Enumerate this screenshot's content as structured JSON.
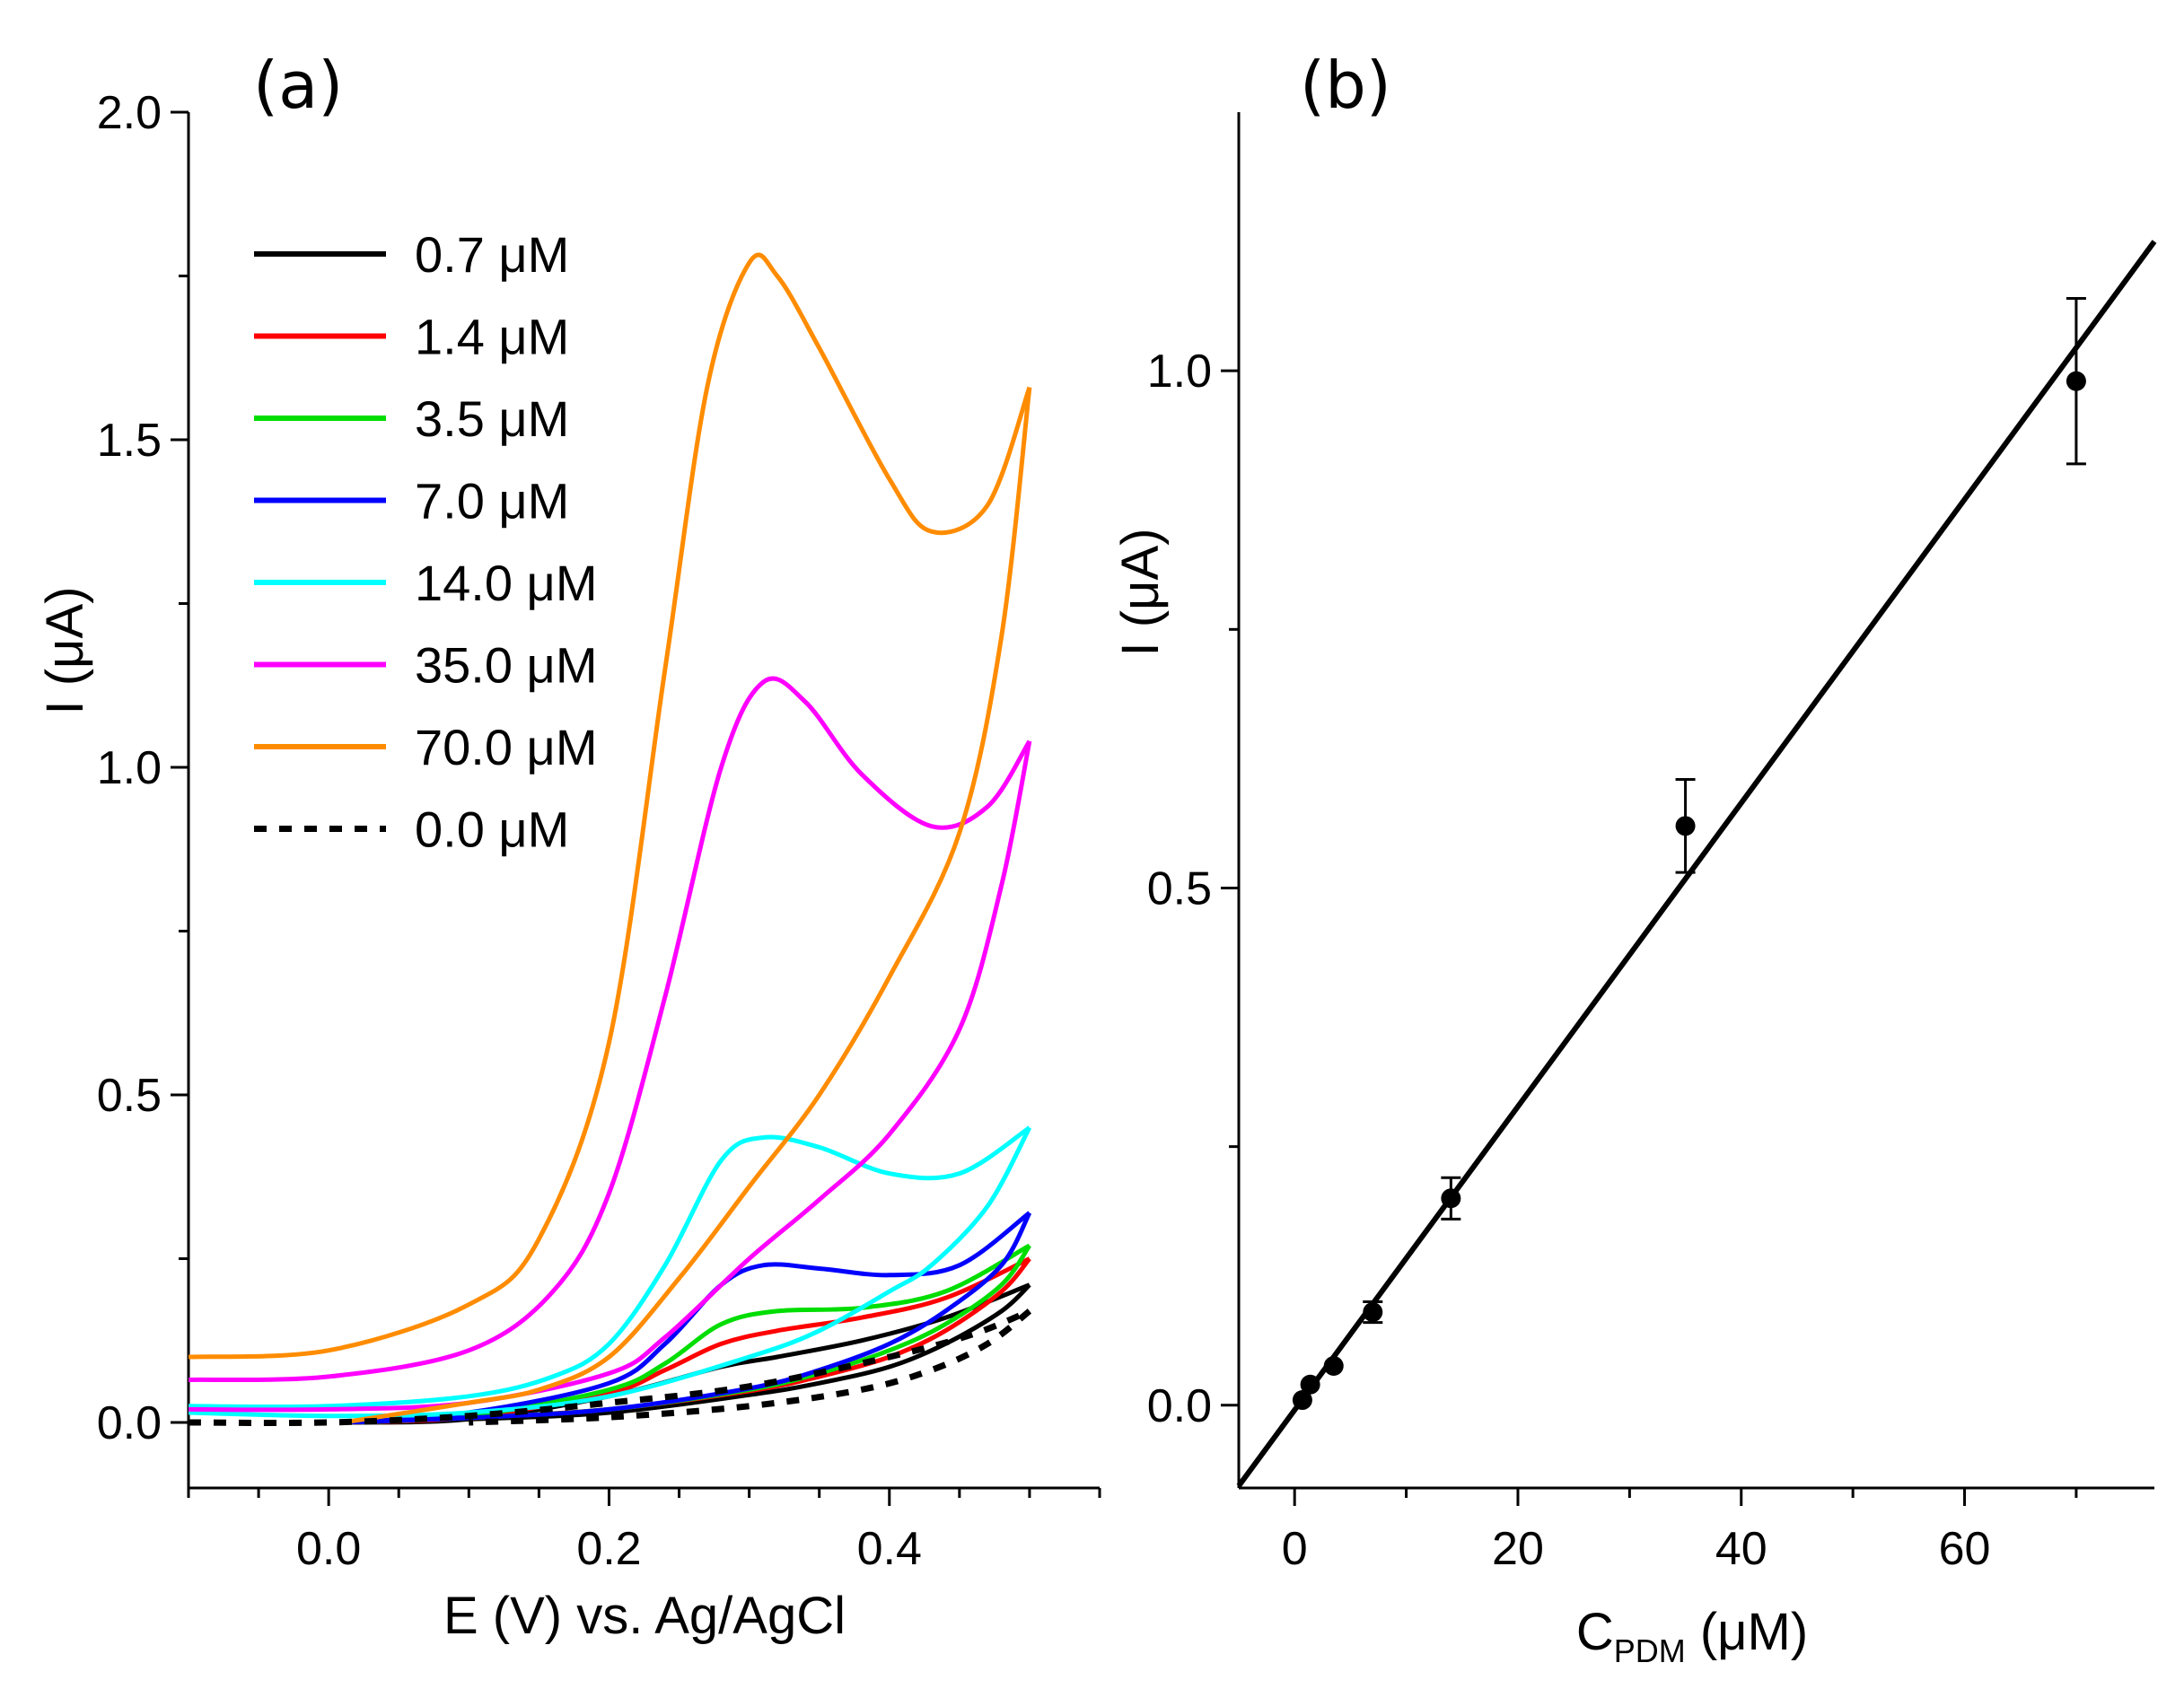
{
  "chart_data": [
    {
      "panel_label": "(a)",
      "type": "line",
      "title": "",
      "xlabel": "E (V) vs. Ag/AgCl",
      "ylabel": "I (μA)",
      "xlim": [
        -0.1,
        0.55
      ],
      "ylim": [
        -0.1,
        2.0
      ],
      "xticks": [
        0.0,
        0.2,
        0.4
      ],
      "xtick_labels": [
        "0.0",
        "0.2",
        "0.4"
      ],
      "yticks": [
        0.0,
        0.5,
        1.0,
        1.5,
        2.0
      ],
      "ytick_labels": [
        "0.0",
        "0.5",
        "1.0",
        "1.5",
        "2.0"
      ],
      "grid": false,
      "legend_position": "top-left",
      "series": [
        {
          "name": "0.7 μM",
          "color": "#000000",
          "dash": false,
          "forward": [
            [
              0.01,
              0.0
            ],
            [
              0.1,
              0.005
            ],
            [
              0.2,
              0.04
            ],
            [
              0.28,
              0.085
            ],
            [
              0.32,
              0.1
            ],
            [
              0.38,
              0.125
            ],
            [
              0.44,
              0.16
            ],
            [
              0.5,
              0.21
            ]
          ],
          "reverse": [
            [
              0.5,
              0.21
            ],
            [
              0.48,
              0.17
            ],
            [
              0.44,
              0.12
            ],
            [
              0.4,
              0.085
            ],
            [
              0.35,
              0.06
            ],
            [
              0.3,
              0.042
            ],
            [
              0.2,
              0.015
            ],
            [
              0.1,
              0.005
            ],
            [
              0.01,
              0.0
            ]
          ]
        },
        {
          "name": "1.4 μM",
          "color": "#ff0000",
          "dash": false,
          "forward": [
            [
              0.01,
              0.0
            ],
            [
              0.1,
              0.008
            ],
            [
              0.2,
              0.045
            ],
            [
              0.24,
              0.08
            ],
            [
              0.28,
              0.12
            ],
            [
              0.32,
              0.14
            ],
            [
              0.38,
              0.16
            ],
            [
              0.44,
              0.19
            ],
            [
              0.5,
              0.25
            ]
          ],
          "reverse": [
            [
              0.5,
              0.25
            ],
            [
              0.48,
              0.2
            ],
            [
              0.44,
              0.14
            ],
            [
              0.4,
              0.1
            ],
            [
              0.35,
              0.07
            ],
            [
              0.3,
              0.048
            ],
            [
              0.2,
              0.02
            ],
            [
              0.1,
              0.007
            ],
            [
              0.01,
              0.0
            ]
          ]
        },
        {
          "name": "3.5 μM",
          "color": "#00dd00",
          "dash": false,
          "forward": [
            [
              0.01,
              0.0
            ],
            [
              0.1,
              0.01
            ],
            [
              0.2,
              0.05
            ],
            [
              0.24,
              0.09
            ],
            [
              0.28,
              0.15
            ],
            [
              0.32,
              0.17
            ],
            [
              0.38,
              0.175
            ],
            [
              0.44,
              0.2
            ],
            [
              0.5,
              0.27
            ]
          ],
          "reverse": [
            [
              0.5,
              0.27
            ],
            [
              0.48,
              0.21
            ],
            [
              0.44,
              0.15
            ],
            [
              0.4,
              0.11
            ],
            [
              0.35,
              0.075
            ],
            [
              0.3,
              0.05
            ],
            [
              0.2,
              0.02
            ],
            [
              0.1,
              0.007
            ],
            [
              0.01,
              0.0
            ]
          ]
        },
        {
          "name": "7.0 μM",
          "color": "#0000ff",
          "dash": false,
          "forward": [
            [
              0.01,
              0.0
            ],
            [
              0.1,
              0.015
            ],
            [
              0.2,
              0.06
            ],
            [
              0.24,
              0.12
            ],
            [
              0.28,
              0.21
            ],
            [
              0.31,
              0.24
            ],
            [
              0.35,
              0.235
            ],
            [
              0.4,
              0.225
            ],
            [
              0.45,
              0.24
            ],
            [
              0.5,
              0.32
            ]
          ],
          "reverse": [
            [
              0.5,
              0.32
            ],
            [
              0.48,
              0.24
            ],
            [
              0.44,
              0.17
            ],
            [
              0.4,
              0.12
            ],
            [
              0.35,
              0.08
            ],
            [
              0.3,
              0.052
            ],
            [
              0.2,
              0.02
            ],
            [
              0.1,
              0.007
            ],
            [
              0.01,
              0.0
            ]
          ]
        },
        {
          "name": "14.0 μM",
          "color": "#00ffff",
          "dash": false,
          "forward": [
            [
              -0.1,
              0.025
            ],
            [
              0.0,
              0.025
            ],
            [
              0.1,
              0.04
            ],
            [
              0.16,
              0.07
            ],
            [
              0.2,
              0.12
            ],
            [
              0.24,
              0.24
            ],
            [
              0.28,
              0.4
            ],
            [
              0.31,
              0.435
            ],
            [
              0.35,
              0.42
            ],
            [
              0.4,
              0.38
            ],
            [
              0.45,
              0.38
            ],
            [
              0.5,
              0.45
            ]
          ],
          "reverse": [
            [
              0.5,
              0.45
            ],
            [
              0.47,
              0.33
            ],
            [
              0.43,
              0.24
            ],
            [
              0.4,
              0.2
            ],
            [
              0.35,
              0.14
            ],
            [
              0.3,
              0.1
            ],
            [
              0.2,
              0.04
            ],
            [
              0.1,
              0.015
            ],
            [
              0.0,
              0.01
            ],
            [
              -0.1,
              0.015
            ]
          ]
        },
        {
          "name": "35.0 μM",
          "color": "#ff00ff",
          "dash": false,
          "forward": [
            [
              -0.1,
              0.065
            ],
            [
              0.0,
              0.07
            ],
            [
              0.1,
              0.11
            ],
            [
              0.16,
              0.2
            ],
            [
              0.2,
              0.35
            ],
            [
              0.24,
              0.65
            ],
            [
              0.28,
              1.0
            ],
            [
              0.31,
              1.13
            ],
            [
              0.34,
              1.1
            ],
            [
              0.38,
              0.99
            ],
            [
              0.43,
              0.91
            ],
            [
              0.47,
              0.94
            ],
            [
              0.5,
              1.04
            ]
          ],
          "reverse": [
            [
              0.5,
              1.04
            ],
            [
              0.48,
              0.82
            ],
            [
              0.45,
              0.6
            ],
            [
              0.4,
              0.44
            ],
            [
              0.35,
              0.34
            ],
            [
              0.3,
              0.25
            ],
            [
              0.24,
              0.13
            ],
            [
              0.2,
              0.075
            ],
            [
              0.1,
              0.03
            ],
            [
              0.0,
              0.02
            ],
            [
              -0.1,
              0.02
            ]
          ]
        },
        {
          "name": "70.0 μM",
          "color": "#ff8c00",
          "dash": false,
          "forward": [
            [
              -0.1,
              0.1
            ],
            [
              0.0,
              0.11
            ],
            [
              0.1,
              0.18
            ],
            [
              0.15,
              0.28
            ],
            [
              0.2,
              0.58
            ],
            [
              0.24,
              1.15
            ],
            [
              0.27,
              1.58
            ],
            [
              0.3,
              1.77
            ],
            [
              0.32,
              1.75
            ],
            [
              0.35,
              1.64
            ],
            [
              0.4,
              1.44
            ],
            [
              0.43,
              1.36
            ],
            [
              0.47,
              1.4
            ],
            [
              0.5,
              1.58
            ]
          ],
          "reverse": [
            [
              0.5,
              1.58
            ],
            [
              0.48,
              1.2
            ],
            [
              0.45,
              0.9
            ],
            [
              0.4,
              0.68
            ],
            [
              0.35,
              0.5
            ],
            [
              0.3,
              0.36
            ],
            [
              0.25,
              0.22
            ],
            [
              0.2,
              0.1
            ],
            [
              0.15,
              0.05
            ],
            [
              0.1,
              0.03
            ],
            [
              0.01,
              0.0
            ]
          ]
        },
        {
          "name": "0.0 μM",
          "color": "#000000",
          "dash": true,
          "forward": [
            [
              -0.1,
              0.0
            ],
            [
              0.0,
              0.0
            ],
            [
              0.1,
              0.01
            ],
            [
              0.2,
              0.03
            ],
            [
              0.3,
              0.055
            ],
            [
              0.4,
              0.1
            ],
            [
              0.46,
              0.135
            ],
            [
              0.5,
              0.17
            ]
          ],
          "reverse": [
            [
              0.5,
              0.17
            ],
            [
              0.47,
              0.12
            ],
            [
              0.43,
              0.08
            ],
            [
              0.38,
              0.05
            ],
            [
              0.3,
              0.025
            ],
            [
              0.2,
              0.008
            ],
            [
              0.1,
              0.0
            ]
          ]
        }
      ]
    },
    {
      "panel_label": "(b)",
      "type": "scatter",
      "title": "",
      "xlabel_main": "C",
      "xlabel_sub": "PDM",
      "xlabel_unit": " (μM)",
      "ylabel": "I (μA)",
      "xlim": [
        -5,
        77
      ],
      "ylim": [
        -0.08,
        1.25
      ],
      "xticks": [
        0,
        20,
        40,
        60
      ],
      "xtick_labels": [
        "0",
        "20",
        "40",
        "60"
      ],
      "yticks": [
        0.0,
        0.5,
        1.0
      ],
      "ytick_labels": [
        "0.0",
        "0.5",
        "1.0"
      ],
      "grid": false,
      "points": [
        {
          "x": 0.7,
          "y": 0.005,
          "err": 0.0
        },
        {
          "x": 1.4,
          "y": 0.02,
          "err": 0.0
        },
        {
          "x": 3.5,
          "y": 0.038,
          "err": 0.0
        },
        {
          "x": 7.0,
          "y": 0.09,
          "err": 0.01
        },
        {
          "x": 14.0,
          "y": 0.2,
          "err": 0.02
        },
        {
          "x": 35.0,
          "y": 0.56,
          "err": 0.045
        },
        {
          "x": 70.0,
          "y": 0.99,
          "err": 0.08
        }
      ],
      "fit_line": {
        "x": [
          -5,
          77
        ],
        "y": [
          -0.078,
          1.125
        ]
      }
    }
  ]
}
